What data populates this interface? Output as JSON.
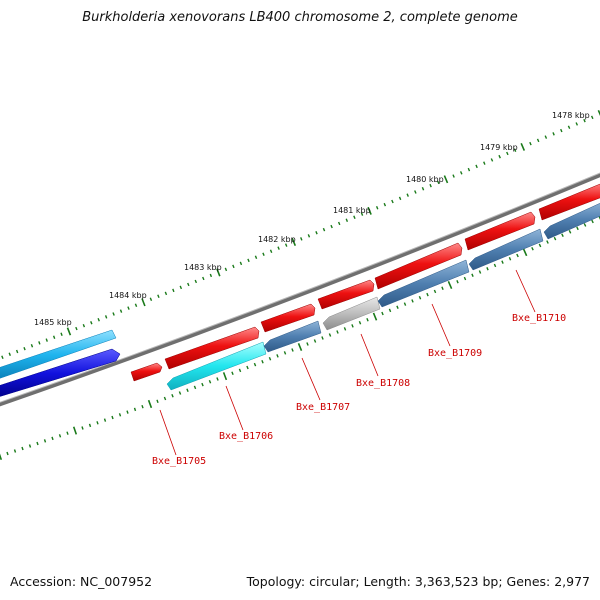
{
  "title": "Burkholderia xenovorans LB400 chromosome 2, complete genome",
  "footer": {
    "accession": "Accession: NC_007952",
    "stats": "Topology: circular; Length: 3,363,523 bp; Genes: 2,977"
  },
  "scale": {
    "tick_labels": [
      "1478 kbp",
      "1479 kbp",
      "1480 kbp",
      "1481 kbp",
      "1482 kbp",
      "1483 kbp",
      "1484 kbp",
      "1485 kbp"
    ]
  },
  "genes": [
    {
      "name": "Bxe_B1705"
    },
    {
      "name": "Bxe_B1706"
    },
    {
      "name": "Bxe_B1707"
    },
    {
      "name": "Bxe_B1708"
    },
    {
      "name": "Bxe_B1709"
    },
    {
      "name": "Bxe_B1710"
    }
  ],
  "colors": {
    "forward_cds": "#ee1111",
    "reverse_cds": "#4f7fb0",
    "highlight_cds": "#22e6ee",
    "pseudo_cds": "#bdbdbd",
    "rna_cds": "#1111dd",
    "light_blue_cds": "#1fb4ee",
    "backbone": "#777777",
    "tick": "#1a7a1a",
    "label": "#cc0000"
  }
}
